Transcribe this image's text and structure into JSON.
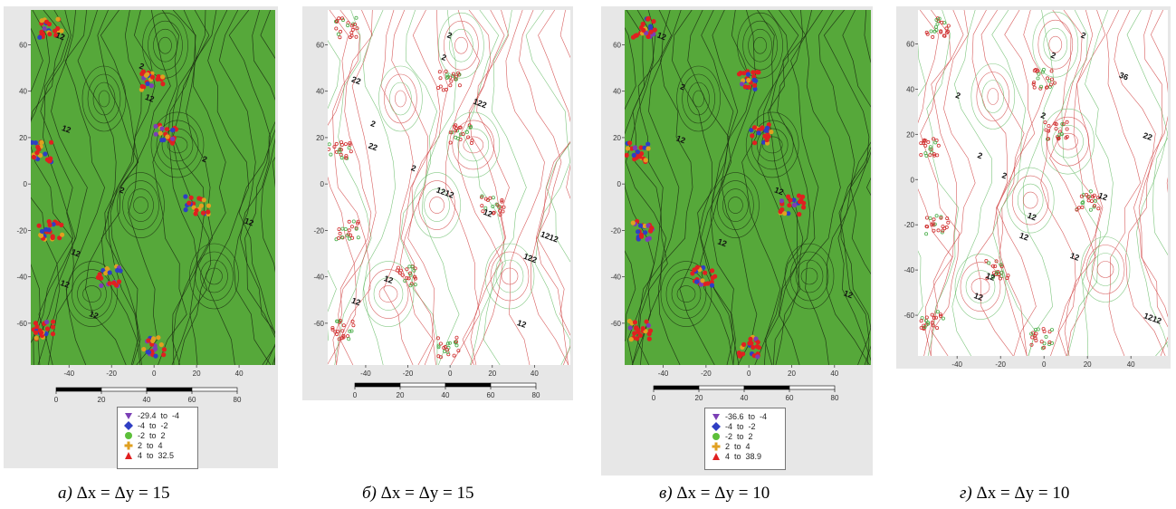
{
  "panels": [
    {
      "id": "a",
      "fill": "green",
      "y_ticks": [
        "60",
        "40",
        "20",
        "0",
        "-20",
        "-40",
        "-60"
      ],
      "x_ticks": [
        "-40",
        "-20",
        "0",
        "20",
        "40"
      ],
      "scale_ticks": [
        "0",
        "20",
        "40",
        "60",
        "80"
      ],
      "contour_labels": [
        "12",
        "2",
        "12",
        "12",
        "2",
        "2",
        "12",
        "12",
        "12",
        "12"
      ],
      "legend": [
        {
          "marker": "triangle-down",
          "color": "#7b3fb5",
          "label": "-29.4  to  -4"
        },
        {
          "marker": "diamond",
          "color": "#2f3fc4",
          "label": "-4  to  -2"
        },
        {
          "marker": "circle",
          "color": "#5cbf3a",
          "label": "-2  to  2"
        },
        {
          "marker": "plus",
          "color": "#e0a020",
          "label": "2  to  4"
        },
        {
          "marker": "triangle-up",
          "color": "#e02020",
          "label": "4  to  32.5"
        }
      ],
      "caption_letter": "а)",
      "caption_formula": "Δx = Δy = 15"
    },
    {
      "id": "b",
      "fill": "white",
      "y_ticks": [
        "60",
        "40",
        "20",
        "0",
        "-20",
        "-40",
        "-60"
      ],
      "x_ticks": [
        "-40",
        "-20",
        "0",
        "20",
        "40"
      ],
      "scale_ticks": [
        "0",
        "20",
        "40",
        "60",
        "80"
      ],
      "contour_labels": [
        "2",
        "2",
        "22",
        "122",
        "2",
        "22",
        "2",
        "1212",
        "12",
        "1212",
        "122",
        "12",
        "12",
        "12"
      ],
      "legend": [],
      "caption_letter": "б)",
      "caption_formula": "Δx = Δy = 15"
    },
    {
      "id": "c",
      "fill": "green",
      "y_ticks": [
        "60",
        "40",
        "20",
        "0",
        "-20",
        "-40",
        "-60"
      ],
      "x_ticks": [
        "-40",
        "-20",
        "0",
        "20",
        "40"
      ],
      "scale_ticks": [
        "0",
        "20",
        "40",
        "60",
        "80"
      ],
      "contour_labels": [
        "12",
        "2",
        "12",
        "12",
        "12",
        "12"
      ],
      "legend": [
        {
          "marker": "triangle-down",
          "color": "#7b3fb5",
          "label": "-36.6  to  -4"
        },
        {
          "marker": "diamond",
          "color": "#2f3fc4",
          "label": "-4  to  -2"
        },
        {
          "marker": "circle",
          "color": "#5cbf3a",
          "label": "-2  to  2"
        },
        {
          "marker": "plus",
          "color": "#e0a020",
          "label": "2  to  4"
        },
        {
          "marker": "triangle-up",
          "color": "#e02020",
          "label": "4  to  38.9"
        }
      ],
      "caption_letter": "в)",
      "caption_formula": "Δx = Δy = 10"
    },
    {
      "id": "d",
      "fill": "white",
      "y_ticks": [
        "60",
        "40",
        "20",
        "0",
        "-20",
        "-40",
        "-60"
      ],
      "x_ticks": [
        "-40",
        "-20",
        "0",
        "20",
        "40"
      ],
      "scale_ticks": [],
      "contour_labels": [
        "2",
        "2",
        "36",
        "2",
        "2",
        "22",
        "2",
        "2",
        "12",
        "12",
        "12",
        "12",
        "12",
        "12",
        "1212"
      ],
      "legend": [],
      "caption_letter": "г)",
      "caption_formula": "Δx = Δy = 10"
    }
  ]
}
